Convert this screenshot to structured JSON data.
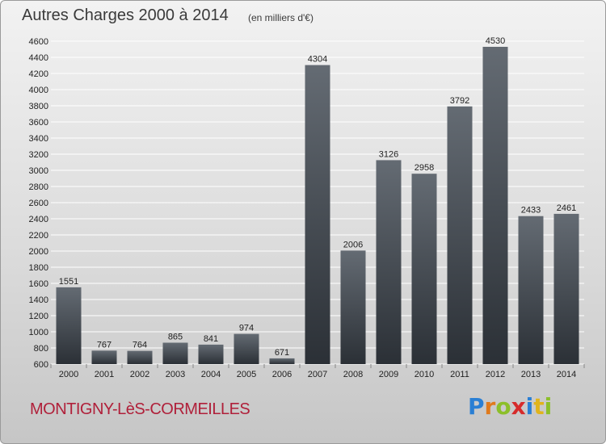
{
  "title": "Autres Charges 2000 à 2014",
  "subtitle": "(en milliers d'€)",
  "commune": "MONTIGNY-LèS-CORMEILLES",
  "logo": {
    "text": "Proxiti",
    "letters": [
      {
        "ch": "P",
        "color": "#2a7fd4"
      },
      {
        "ch": "r",
        "color": "#e07a1c"
      },
      {
        "ch": "o",
        "color": "#8cbf2a"
      },
      {
        "ch": "x",
        "color": "#d62b2b"
      },
      {
        "ch": "i",
        "color": "#2a7fd4"
      },
      {
        "ch": "t",
        "color": "#e0b41c"
      },
      {
        "ch": "i",
        "color": "#8cbf2a"
      }
    ]
  },
  "chart_data": {
    "type": "bar",
    "title": "Autres Charges 2000 à 2014",
    "subtitle": "(en milliers d'€)",
    "categories": [
      "2000",
      "2001",
      "2002",
      "2003",
      "2004",
      "2005",
      "2006",
      "2007",
      "2008",
      "2009",
      "2010",
      "2011",
      "2012",
      "2013",
      "2014"
    ],
    "values": [
      1551,
      767,
      764,
      865,
      841,
      974,
      671,
      4304,
      2006,
      3126,
      2958,
      3792,
      4530,
      2433,
      2461
    ],
    "ylim": [
      600,
      4600
    ],
    "yticks": [
      600,
      800,
      1000,
      1200,
      1400,
      1600,
      1800,
      2000,
      2200,
      2400,
      2600,
      2800,
      3000,
      3200,
      3400,
      3600,
      3800,
      4000,
      4200,
      4400,
      4600
    ],
    "grid": true,
    "colors": {
      "bar_top": "#646b73",
      "bar_bottom": "#2b3036",
      "grid": "#ffffff",
      "axis_text": "#222222"
    }
  }
}
